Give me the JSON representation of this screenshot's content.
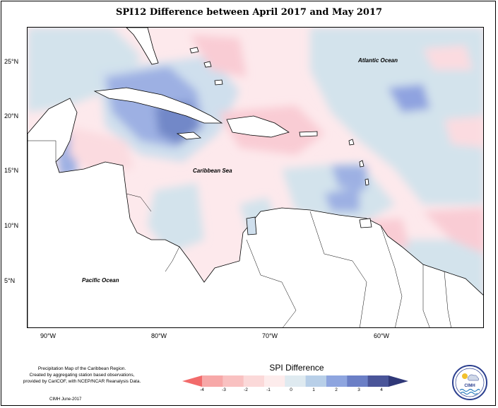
{
  "title": "SPI12 Difference between April 2017 and May 2017",
  "map": {
    "labels": {
      "atlantic": "Atlantic Ocean",
      "caribbean": "Caribbean Sea",
      "pacific": "Pacific Ocean"
    },
    "lat_ticks": [
      "25°N",
      "20°N",
      "15°N",
      "10°N",
      "5°N"
    ],
    "lon_ticks": [
      "90°W",
      "80°W",
      "70°W",
      "60°W"
    ]
  },
  "credit": {
    "line1": "Precipitation Map of the Caribbean Region.",
    "line2": "Created by aggregating station based observations,",
    "line3": "provided by CariCOF, with NCEP/NCAR Reanalysis Data.",
    "date": "CIMH June-2017"
  },
  "legend": {
    "title": "SPI Difference",
    "ticks": [
      "-4",
      "-3",
      "-2",
      "-1",
      "0",
      "1",
      "2",
      "3",
      "4"
    ],
    "colors": [
      "#f7a8a8",
      "#f9c1c1",
      "#fbd9d9",
      "#fdecec",
      "#dfeaf0",
      "#b8cfe8",
      "#8ea5df",
      "#6b7fc6",
      "#4a5599"
    ]
  },
  "logo": {
    "text": "CIMH"
  }
}
